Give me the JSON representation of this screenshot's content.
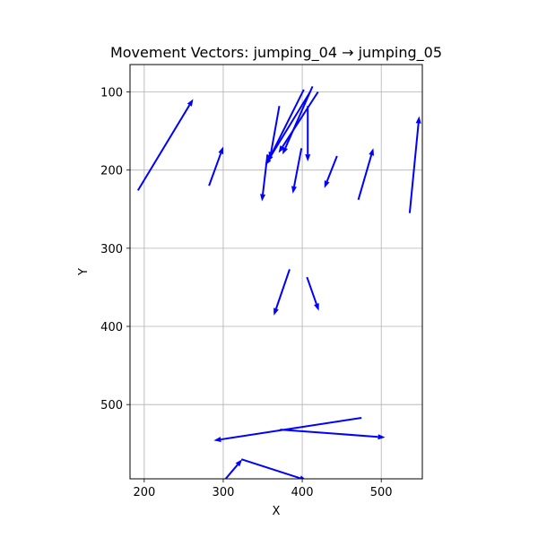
{
  "chart_data": {
    "type": "quiver",
    "title": "Movement Vectors: jumping_04 → jumping_05",
    "xlabel": "X",
    "ylabel": "Y",
    "xlim": [
      182,
      552
    ],
    "ylim": [
      595,
      65
    ],
    "y_inverted": true,
    "grid": true,
    "color": "#0000ff",
    "xticks": [
      200,
      300,
      400,
      500
    ],
    "yticks": [
      100,
      200,
      300,
      400,
      500
    ],
    "vectors": [
      {
        "x1": 192,
        "y1": 226,
        "x2": 262,
        "y2": 109
      },
      {
        "x1": 282,
        "y1": 220,
        "x2": 300,
        "y2": 170
      },
      {
        "x1": 371,
        "y1": 118,
        "x2": 359,
        "y2": 186
      },
      {
        "x1": 402,
        "y1": 97,
        "x2": 356,
        "y2": 190
      },
      {
        "x1": 413,
        "y1": 93,
        "x2": 375,
        "y2": 180
      },
      {
        "x1": 420,
        "y1": 100,
        "x2": 370,
        "y2": 178
      },
      {
        "x1": 410,
        "y1": 100,
        "x2": 353,
        "y2": 194
      },
      {
        "x1": 407,
        "y1": 118,
        "x2": 407,
        "y2": 189
      },
      {
        "x1": 356,
        "y1": 180,
        "x2": 349,
        "y2": 240
      },
      {
        "x1": 399,
        "y1": 172,
        "x2": 388,
        "y2": 230
      },
      {
        "x1": 444,
        "y1": 182,
        "x2": 428,
        "y2": 223
      },
      {
        "x1": 471,
        "y1": 238,
        "x2": 490,
        "y2": 172
      },
      {
        "x1": 536,
        "y1": 255,
        "x2": 548,
        "y2": 131
      },
      {
        "x1": 384,
        "y1": 327,
        "x2": 364,
        "y2": 386
      },
      {
        "x1": 406,
        "y1": 337,
        "x2": 421,
        "y2": 380
      },
      {
        "x1": 475,
        "y1": 517,
        "x2": 288,
        "y2": 546
      },
      {
        "x1": 372,
        "y1": 532,
        "x2": 505,
        "y2": 542
      },
      {
        "x1": 298,
        "y1": 601,
        "x2": 324,
        "y2": 570
      },
      {
        "x1": 323,
        "y1": 570,
        "x2": 406,
        "y2": 597
      }
    ]
  }
}
